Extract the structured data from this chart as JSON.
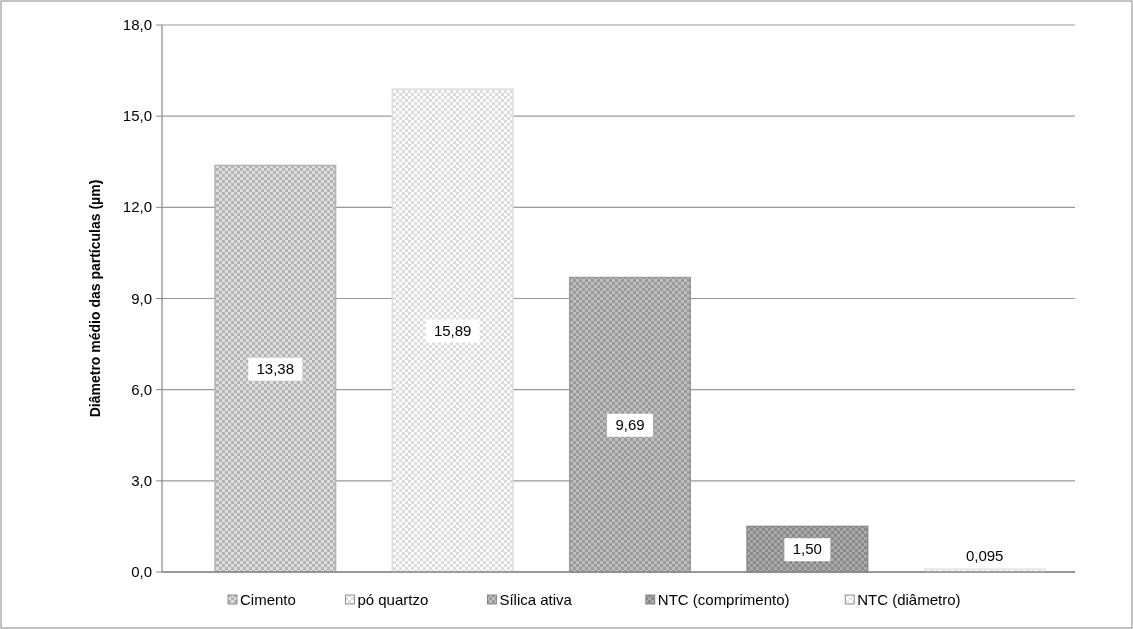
{
  "chart_data": {
    "type": "bar",
    "ylabel": "Diâmetro médio das partículas (µm)",
    "categories": [
      null,
      null,
      null,
      null,
      null
    ],
    "series": [
      {
        "name": "Cimento",
        "color": "#b4b4b4",
        "values": [
          13.38,
          null,
          null,
          null,
          null
        ],
        "value_labels": [
          "13,38",
          null,
          null,
          null,
          null
        ]
      },
      {
        "name": "pó quartzo",
        "color": "#dcdcdc",
        "values": [
          null,
          15.89,
          null,
          null,
          null
        ],
        "value_labels": [
          null,
          "15,89",
          null,
          null,
          null
        ]
      },
      {
        "name": "Sílica ativa",
        "color": "#9a9a9a",
        "values": [
          null,
          null,
          9.69,
          null,
          null
        ],
        "value_labels": [
          null,
          null,
          "9,69",
          null,
          null
        ]
      },
      {
        "name": "NTC (comprimento)",
        "color": "#8a8a8a",
        "values": [
          null,
          null,
          null,
          1.5,
          null
        ],
        "value_labels": [
          null,
          null,
          null,
          "1,50",
          null
        ]
      },
      {
        "name": "NTC (diâmetro)",
        "color": "#e4e4e4",
        "values": [
          null,
          null,
          null,
          null,
          0.095
        ],
        "value_labels": [
          null,
          null,
          null,
          null,
          "0,095"
        ]
      }
    ],
    "ylim": [
      0,
      18
    ],
    "yticks": [
      {
        "value": 0,
        "label": "0,0"
      },
      {
        "value": 3,
        "label": "3,0"
      },
      {
        "value": 6,
        "label": "6,0"
      },
      {
        "value": 9,
        "label": "9,0"
      },
      {
        "value": 12,
        "label": "12,0"
      },
      {
        "value": 15,
        "label": "15,0"
      },
      {
        "value": 18,
        "label": "18,0"
      }
    ],
    "grid": "y",
    "legend": "bottom"
  }
}
